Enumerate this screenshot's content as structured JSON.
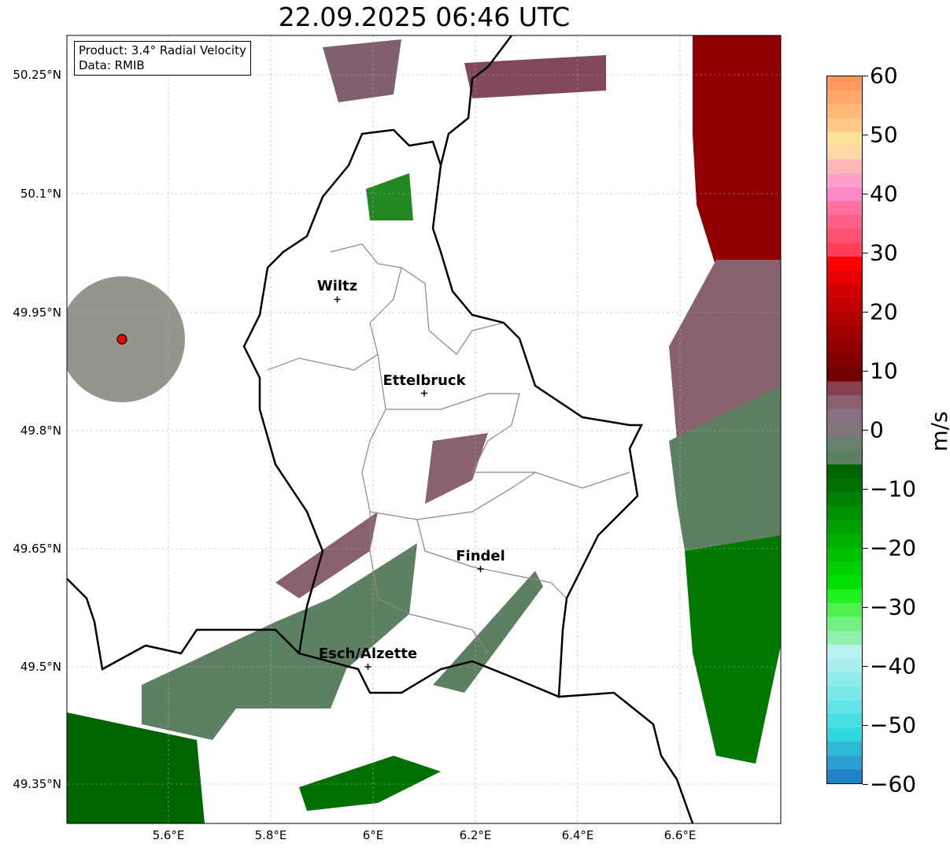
{
  "title": "22.09.2025 06:46 UTC",
  "info": {
    "product": "Product: 3.4° Radial Velocity",
    "data": "Data: RMIB"
  },
  "lat_labels": [
    "50.25°N",
    "50.1°N",
    "49.95°N",
    "49.8°N",
    "49.65°N",
    "49.5°N",
    "49.35°N"
  ],
  "lon_labels": [
    "5.6°E",
    "5.8°E",
    "6°E",
    "6.2°E",
    "6.4°E",
    "6.6°E"
  ],
  "cities": [
    {
      "name": "Wiltz",
      "lon": 5.93,
      "lat": 49.966
    },
    {
      "name": "Ettelbruck",
      "lon": 6.1,
      "lat": 49.847
    },
    {
      "name": "Findel",
      "lon": 6.21,
      "lat": 49.624
    },
    {
      "name": "Esch/Alzette",
      "lon": 5.99,
      "lat": 49.5
    }
  ],
  "colorbar": {
    "unit": "m/s",
    "min": -60,
    "max": 60,
    "ticks": [
      "60",
      "50",
      "40",
      "30",
      "20",
      "10",
      "0",
      "−10",
      "−20",
      "−30",
      "−40",
      "−50",
      "−60"
    ],
    "colors": [
      "#2080c8",
      "#2aa0d0",
      "#30b8d8",
      "#30d8e0",
      "#48e0e4",
      "#60e4e8",
      "#78e8e8",
      "#90ecec",
      "#a8f0f0",
      "#b8f2f2",
      "#90f0b0",
      "#70f080",
      "#50f050",
      "#20f020",
      "#00e000",
      "#00d000",
      "#00c000",
      "#00b000",
      "#00a000",
      "#009000",
      "#008000",
      "#007000",
      "#006400",
      "#5c8060",
      "#688070",
      "#807878",
      "#887080",
      "#8a6070",
      "#884050",
      "#700000",
      "#800000",
      "#900000",
      "#a00000",
      "#b00000",
      "#c00000",
      "#d00000",
      "#e80000",
      "#ff0000",
      "#ff4058",
      "#ff5070",
      "#ff6088",
      "#ff70a0",
      "#ff88c8",
      "#ffa0c8",
      "#ffb8b8",
      "#ffd8a8",
      "#ffe098",
      "#ffc888",
      "#ffb878",
      "#ffa868",
      "#ff9858"
    ]
  }
}
